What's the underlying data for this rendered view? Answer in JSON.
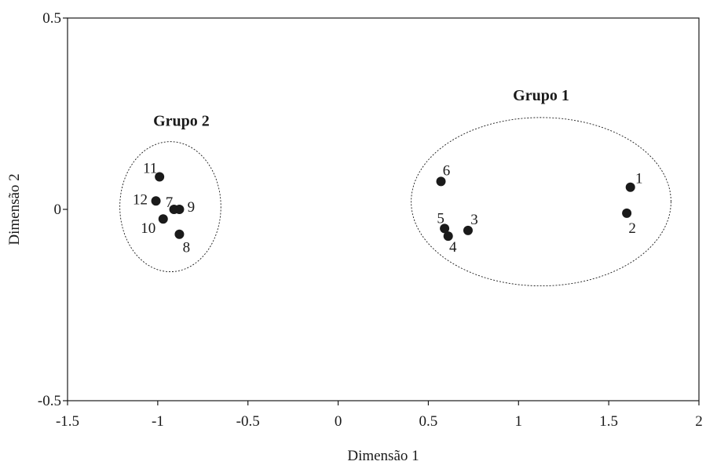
{
  "chart_data": {
    "type": "scatter",
    "xlabel": "Dimensão 1",
    "ylabel": "Dimensão 2",
    "xlim": [
      -1.5,
      2
    ],
    "ylim": [
      -0.5,
      0.5
    ],
    "x_ticks": [
      {
        "value": -1.5,
        "label": "-1.5"
      },
      {
        "value": -1,
        "label": "-1"
      },
      {
        "value": -0.5,
        "label": "-0.5"
      },
      {
        "value": 0,
        "label": "0"
      },
      {
        "value": 0.5,
        "label": "0.5"
      },
      {
        "value": 1,
        "label": "1"
      },
      {
        "value": 1.5,
        "label": "1.5"
      },
      {
        "value": 2,
        "label": "2"
      }
    ],
    "y_ticks": [
      {
        "value": 0.5,
        "label": "0.5"
      },
      {
        "value": 0,
        "label": "0"
      },
      {
        "value": -0.5,
        "label": "-0.5"
      }
    ],
    "grid": false,
    "marker_color": "#1a1a1a",
    "points": [
      {
        "label": "1",
        "x": 1.62,
        "y": 0.058
      },
      {
        "label": "2",
        "x": 1.6,
        "y": -0.01
      },
      {
        "label": "3",
        "x": 0.72,
        "y": -0.055
      },
      {
        "label": "4",
        "x": 0.61,
        "y": -0.07
      },
      {
        "label": "5",
        "x": 0.59,
        "y": -0.05
      },
      {
        "label": "6",
        "x": 0.57,
        "y": 0.073
      },
      {
        "label": "7",
        "x": -0.91,
        "y": 0.0
      },
      {
        "label": "8",
        "x": -0.88,
        "y": -0.065
      },
      {
        "label": "9",
        "x": -0.88,
        "y": 0.0
      },
      {
        "label": "10",
        "x": -0.97,
        "y": -0.025
      },
      {
        "label": "11",
        "x": -0.99,
        "y": 0.085
      },
      {
        "label": "12",
        "x": -1.01,
        "y": 0.022
      }
    ],
    "groups": [
      {
        "name": "Grupo 1",
        "center": [
          1.125,
          0.02
        ],
        "radius": [
          0.72,
          0.22
        ],
        "style": "dotted ellipse"
      },
      {
        "name": "Grupo 2",
        "center": [
          -0.93,
          0.007
        ],
        "radius": [
          0.28,
          0.17
        ],
        "style": "dotted ellipse"
      }
    ]
  }
}
